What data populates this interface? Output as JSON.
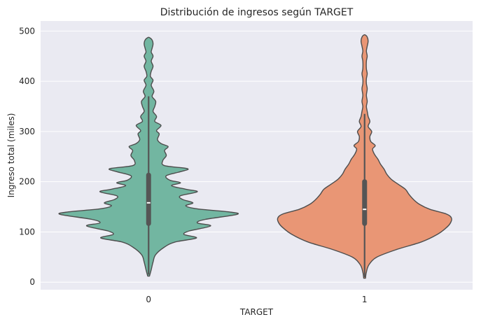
{
  "chart_data": {
    "type": "violin",
    "title": "Distribución de ingresos según TARGET",
    "xlabel": "TARGET",
    "ylabel": "Ingreso total (miles)",
    "categories": [
      "0",
      "1"
    ],
    "ylim": [
      -15,
      520
    ],
    "yticks": [
      0,
      100,
      200,
      300,
      400,
      500
    ],
    "grid": true,
    "legend": "none",
    "colors": {
      "0": "#72b6a1",
      "1": "#e99675"
    },
    "background": "#eaeaf2",
    "series": [
      {
        "category": "0",
        "min": 12,
        "max": 487,
        "q1": 112,
        "median": 158,
        "q3": 218,
        "whisker_low": 15,
        "whisker_high": 370,
        "density": [
          [
            12,
            0.01
          ],
          [
            25,
            0.03
          ],
          [
            40,
            0.05
          ],
          [
            55,
            0.08
          ],
          [
            70,
            0.18
          ],
          [
            80,
            0.3
          ],
          [
            88,
            0.54
          ],
          [
            95,
            0.4
          ],
          [
            102,
            0.46
          ],
          [
            112,
            0.7
          ],
          [
            118,
            0.55
          ],
          [
            125,
            0.64
          ],
          [
            135,
            1.0
          ],
          [
            140,
            0.9
          ],
          [
            146,
            0.55
          ],
          [
            152,
            0.42
          ],
          [
            158,
            0.5
          ],
          [
            165,
            0.38
          ],
          [
            172,
            0.36
          ],
          [
            180,
            0.55
          ],
          [
            185,
            0.42
          ],
          [
            192,
            0.26
          ],
          [
            198,
            0.36
          ],
          [
            203,
            0.24
          ],
          [
            212,
            0.2
          ],
          [
            220,
            0.36
          ],
          [
            226,
            0.44
          ],
          [
            232,
            0.18
          ],
          [
            242,
            0.16
          ],
          [
            252,
            0.2
          ],
          [
            262,
            0.18
          ],
          [
            270,
            0.22
          ],
          [
            276,
            0.14
          ],
          [
            284,
            0.1
          ],
          [
            295,
            0.12
          ],
          [
            302,
            0.09
          ],
          [
            312,
            0.14
          ],
          [
            320,
            0.07
          ],
          [
            330,
            0.09
          ],
          [
            340,
            0.05
          ],
          [
            350,
            0.07
          ],
          [
            360,
            0.08
          ],
          [
            370,
            0.04
          ],
          [
            380,
            0.06
          ],
          [
            392,
            0.03
          ],
          [
            402,
            0.05
          ],
          [
            410,
            0.02
          ],
          [
            420,
            0.03
          ],
          [
            430,
            0.05
          ],
          [
            440,
            0.03
          ],
          [
            450,
            0.05
          ],
          [
            458,
            0.03
          ],
          [
            466,
            0.04
          ],
          [
            474,
            0.05
          ],
          [
            482,
            0.04
          ],
          [
            487,
            0.01
          ]
        ]
      },
      {
        "category": "1",
        "min": 8,
        "max": 492,
        "q1": 112,
        "median": 145,
        "q3": 205,
        "whisker_low": 10,
        "whisker_high": 335,
        "density": [
          [
            8,
            0.01
          ],
          [
            20,
            0.02
          ],
          [
            35,
            0.05
          ],
          [
            50,
            0.14
          ],
          [
            65,
            0.36
          ],
          [
            80,
            0.64
          ],
          [
            95,
            0.82
          ],
          [
            108,
            0.92
          ],
          [
            118,
            0.97
          ],
          [
            128,
            0.98
          ],
          [
            136,
            0.92
          ],
          [
            145,
            0.74
          ],
          [
            155,
            0.62
          ],
          [
            165,
            0.55
          ],
          [
            175,
            0.5
          ],
          [
            185,
            0.46
          ],
          [
            195,
            0.38
          ],
          [
            205,
            0.3
          ],
          [
            215,
            0.25
          ],
          [
            225,
            0.22
          ],
          [
            235,
            0.18
          ],
          [
            245,
            0.15
          ],
          [
            255,
            0.11
          ],
          [
            265,
            0.09
          ],
          [
            272,
            0.12
          ],
          [
            280,
            0.07
          ],
          [
            290,
            0.06
          ],
          [
            300,
            0.08
          ],
          [
            310,
            0.04
          ],
          [
            320,
            0.06
          ],
          [
            330,
            0.04
          ],
          [
            340,
            0.03
          ],
          [
            350,
            0.02
          ],
          [
            360,
            0.03
          ],
          [
            372,
            0.02
          ],
          [
            385,
            0.03
          ],
          [
            395,
            0.02
          ],
          [
            405,
            0.02
          ],
          [
            415,
            0.03
          ],
          [
            425,
            0.02
          ],
          [
            440,
            0.02
          ],
          [
            450,
            0.03
          ],
          [
            460,
            0.02
          ],
          [
            470,
            0.03
          ],
          [
            480,
            0.04
          ],
          [
            488,
            0.03
          ],
          [
            492,
            0.01
          ]
        ]
      }
    ]
  }
}
